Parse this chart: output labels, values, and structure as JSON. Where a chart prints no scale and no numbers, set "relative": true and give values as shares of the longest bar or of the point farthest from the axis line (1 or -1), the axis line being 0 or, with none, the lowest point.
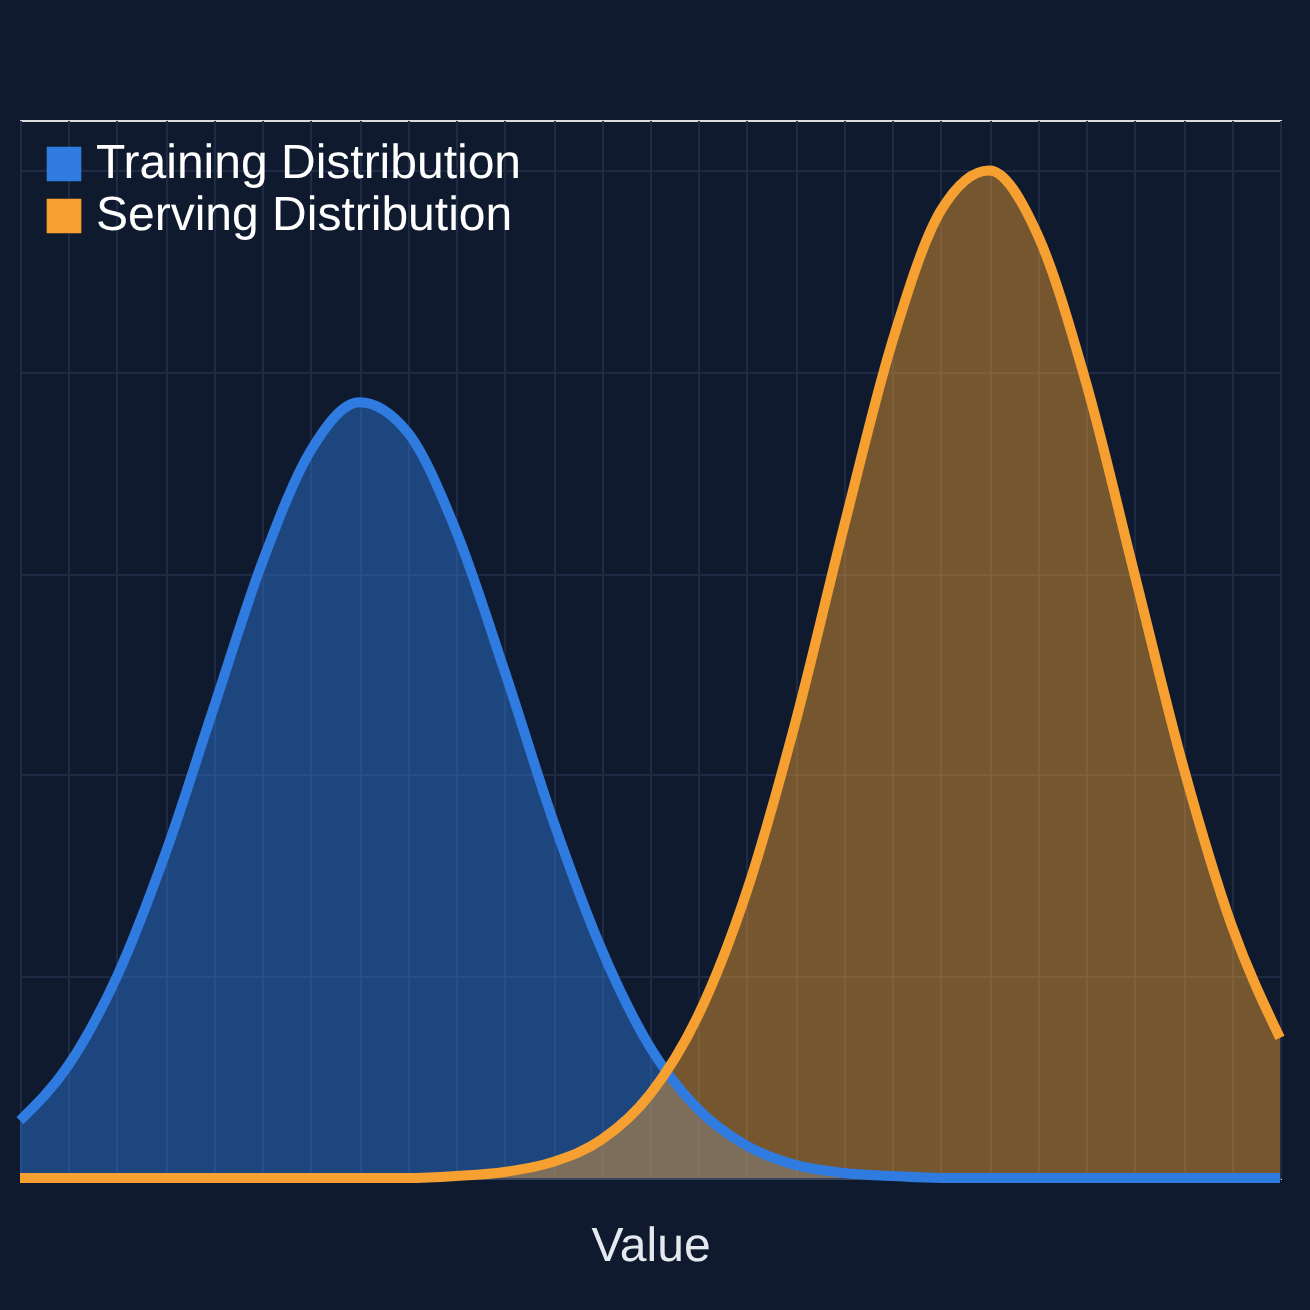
{
  "chart_data": {
    "type": "area",
    "relative": true,
    "xlabel": "Value",
    "legend": "top left",
    "grid": true,
    "categories": [
      null,
      null,
      null,
      null,
      null,
      null,
      null,
      null,
      null,
      null,
      null,
      null,
      null,
      null,
      null,
      null,
      null,
      null,
      null,
      null,
      null,
      null,
      null,
      null,
      null,
      null,
      null
    ],
    "series": [
      {
        "name": "Training Distribution",
        "color": "#2f7be0",
        "values": [
          0.057,
          0.112,
          0.2,
          0.322,
          0.467,
          0.611,
          0.722,
          0.77,
          0.74,
          0.642,
          0.503,
          0.355,
          0.227,
          0.13,
          0.068,
          0.032,
          0.013,
          0.005,
          0.002,
          0,
          0,
          0,
          0,
          0,
          0,
          0,
          0
        ]
      },
      {
        "name": "Serving Distribution",
        "color": "#f5a030",
        "values": [
          0,
          0,
          0,
          0,
          0,
          0,
          0,
          0,
          0,
          0.002,
          0.006,
          0.016,
          0.038,
          0.083,
          0.162,
          0.285,
          0.452,
          0.646,
          0.83,
          0.96,
          1.0,
          0.936,
          0.789,
          0.599,
          0.409,
          0.251,
          0.139
        ]
      }
    ]
  }
}
